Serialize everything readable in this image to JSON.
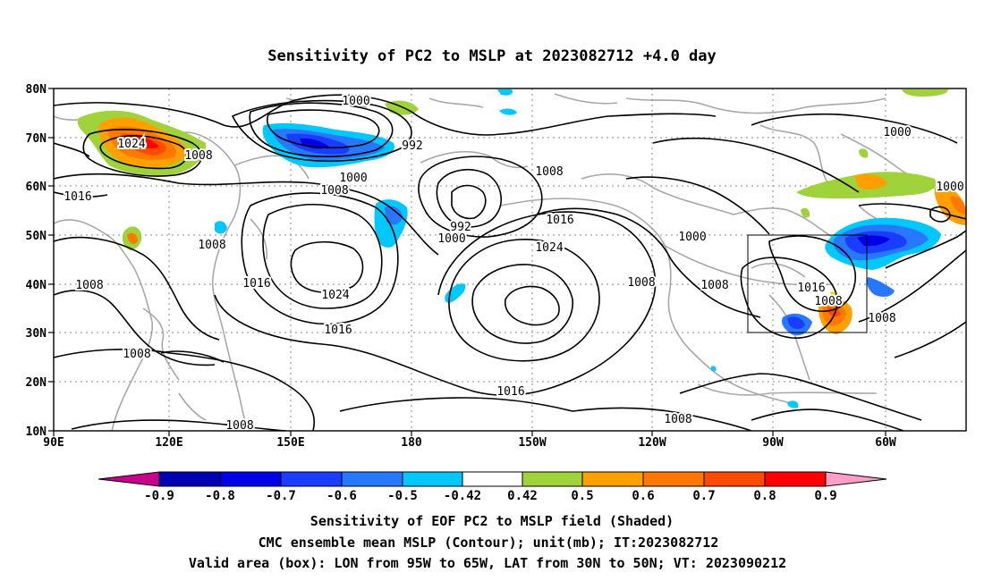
{
  "title": "Sensitivity of PC2 to MSLP at 2023082712 +4.0 day",
  "map": {
    "lat_labels": [
      "80N",
      "70N",
      "60N",
      "50N",
      "40N",
      "30N",
      "20N",
      "10N"
    ],
    "lon_labels": [
      "90E",
      "120E",
      "150E",
      "180",
      "150W",
      "120W",
      "90W",
      "60W"
    ],
    "lon_range": "90E to 35W",
    "lat_range": "10N to 80N",
    "grid": "dotted",
    "valid_box": {
      "lon": [
        "95W",
        "65W"
      ],
      "lat": [
        "30N",
        "50N"
      ]
    },
    "contour_labels": [
      "1000",
      "992",
      "1024",
      "1008",
      "1016",
      "1008",
      "1000",
      "1008",
      "992",
      "1000",
      "1008",
      "1016",
      "1024",
      "1016",
      "1008",
      "1024",
      "1016",
      "1016",
      "1008",
      "1000",
      "1008",
      "1008",
      "1016",
      "1008",
      "1008",
      "1000",
      "1000",
      "1008",
      "1008",
      "1008"
    ]
  },
  "colorbar": {
    "labels": [
      "-0.9",
      "-0.8",
      "-0.7",
      "-0.6",
      "-0.5",
      "-0.42",
      "0.42",
      "0.5",
      "0.6",
      "0.7",
      "0.8",
      "0.9"
    ],
    "colors": [
      "#c8008c",
      "#0000b4",
      "#0000e6",
      "#1a3cff",
      "#2878ff",
      "#2a96f0",
      "#00c8ff",
      "#ffffff",
      "#a0d23c",
      "#ffa000",
      "#ff7800",
      "#ff4b00",
      "#ff0000",
      "#ff9fc8"
    ]
  },
  "captions": [
    "Sensitivity of EOF PC2 to MSLP field (Shaded)",
    "CMC ensemble mean MSLP (Contour); unit(mb); IT:2023082712",
    "Valid area (box): LON from 95W to 65W, LAT from 30N to 50N; VT: 2023090212"
  ]
}
